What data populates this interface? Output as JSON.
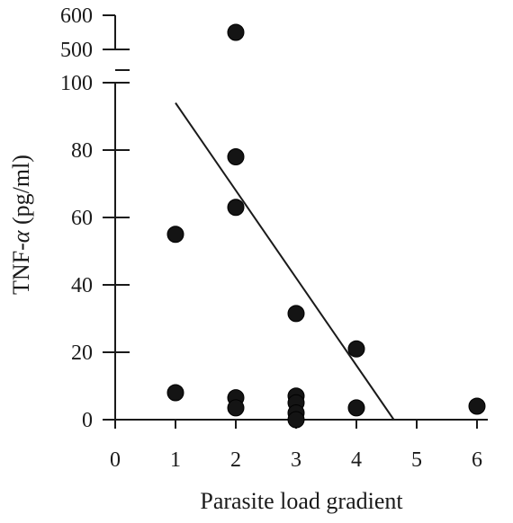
{
  "chart_data": {
    "type": "scatter",
    "xlabel": "Parasite load gradient",
    "ylabel_main": "TNF-",
    "ylabel_symbol": "α",
    "ylabel_unit": " (pg/ml)",
    "x_ticks": [
      0,
      1,
      2,
      3,
      4,
      5,
      6
    ],
    "y_ticks_lower": [
      0,
      20,
      40,
      60,
      80,
      100
    ],
    "y_ticks_upper": [
      500,
      600
    ],
    "xlim": [
      0,
      6.2
    ],
    "ylim_lower": [
      0,
      100
    ],
    "ylim_upper": [
      500,
      600
    ],
    "axis_break": "between 100 and 500",
    "points": [
      {
        "x": 1,
        "y": 55
      },
      {
        "x": 1,
        "y": 8
      },
      {
        "x": 2,
        "y": 550
      },
      {
        "x": 2,
        "y": 78
      },
      {
        "x": 2,
        "y": 63
      },
      {
        "x": 2,
        "y": 6.5
      },
      {
        "x": 2,
        "y": 3.5
      },
      {
        "x": 3,
        "y": 31.5
      },
      {
        "x": 3,
        "y": 7
      },
      {
        "x": 3,
        "y": 5
      },
      {
        "x": 3,
        "y": 2
      },
      {
        "x": 3,
        "y": 0
      },
      {
        "x": 4,
        "y": 21
      },
      {
        "x": 4,
        "y": 3.5
      },
      {
        "x": 6,
        "y": 4
      }
    ],
    "trend_line": {
      "x": [
        1,
        4.62
      ],
      "y": [
        94,
        0
      ]
    }
  },
  "colors": {
    "ink": "#1a1a1a",
    "point": "#141414"
  }
}
